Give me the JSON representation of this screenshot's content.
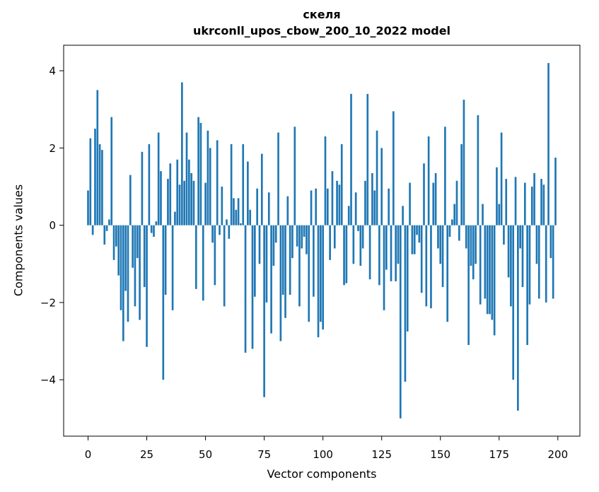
{
  "figure": {
    "background": "#ffffff",
    "text_color": "#000000"
  },
  "chart_data": {
    "type": "bar",
    "title_line1": "скеля",
    "title_line2": "ukrconll_upos_cbow_200_10_2022 model",
    "xlabel": "Vector components",
    "ylabel": "Components values",
    "bar_color": "#1f77b4",
    "legend": "none",
    "grid": false,
    "x_ticks": [
      0,
      25,
      50,
      75,
      100,
      125,
      150,
      175,
      200
    ],
    "y_ticks": [
      -4,
      -2,
      0,
      2,
      4
    ],
    "xlim": [
      -10.39,
      209.39
    ],
    "ylim": [
      -5.46,
      4.66
    ],
    "x_start": 0,
    "bar_width_units": 0.8,
    "values": [
      0.9,
      2.25,
      -0.25,
      2.5,
      3.5,
      2.1,
      1.95,
      -0.5,
      -0.15,
      0.15,
      2.8,
      -0.9,
      -0.55,
      -1.3,
      -2.2,
      -3.0,
      -1.7,
      -2.5,
      1.3,
      -1.1,
      -2.1,
      -0.85,
      -2.45,
      1.9,
      -1.6,
      -3.15,
      2.1,
      -0.2,
      -0.3,
      0.1,
      2.4,
      1.4,
      -4.0,
      -1.8,
      1.2,
      1.6,
      -2.2,
      0.35,
      1.7,
      1.05,
      3.7,
      1.15,
      2.4,
      1.7,
      1.35,
      1.15,
      -1.65,
      2.8,
      2.65,
      -1.95,
      1.1,
      2.45,
      2.0,
      -0.45,
      -1.55,
      2.2,
      -0.25,
      1.0,
      -2.1,
      0.15,
      -0.35,
      2.1,
      0.7,
      0.4,
      0.7,
      0.05,
      2.1,
      -3.3,
      1.65,
      0.4,
      -3.2,
      -1.85,
      0.95,
      -1.0,
      1.85,
      -4.45,
      -2.0,
      0.85,
      -2.8,
      -1.05,
      -0.45,
      2.4,
      -3.0,
      -1.8,
      -2.4,
      0.75,
      -1.8,
      -0.85,
      2.55,
      -0.55,
      -2.1,
      -0.6,
      -0.3,
      -0.75,
      -2.5,
      0.9,
      -1.85,
      0.95,
      -2.9,
      -2.5,
      -2.7,
      2.3,
      0.95,
      -0.9,
      1.4,
      -0.6,
      1.15,
      1.05,
      2.1,
      -1.55,
      -1.5,
      0.5,
      3.4,
      -1.0,
      0.85,
      -0.15,
      -1.05,
      -0.6,
      1.15,
      3.4,
      -1.4,
      1.35,
      0.9,
      2.45,
      -1.55,
      2.0,
      -2.2,
      -1.15,
      0.95,
      -1.45,
      2.95,
      -1.45,
      -1.0,
      -5.0,
      0.5,
      -4.05,
      -2.75,
      1.1,
      -0.75,
      -0.75,
      -0.25,
      -0.45,
      -1.75,
      1.6,
      -2.1,
      2.3,
      -2.15,
      1.1,
      1.35,
      -0.6,
      -1.0,
      -1.6,
      2.55,
      -2.5,
      -0.3,
      0.15,
      0.55,
      1.15,
      -0.4,
      2.1,
      3.25,
      -0.6,
      -3.1,
      -1.05,
      -1.4,
      -1.0,
      2.85,
      -2.05,
      0.55,
      -1.9,
      -2.3,
      -2.3,
      -2.45,
      -2.85,
      1.5,
      0.55,
      2.4,
      -0.5,
      1.2,
      -1.35,
      -2.1,
      -4.0,
      1.25,
      -4.8,
      -0.6,
      -1.6,
      1.1,
      -3.1,
      -2.05,
      1.0,
      1.35,
      -1.0,
      -1.9,
      1.2,
      1.05,
      -2.0,
      4.2,
      -0.85,
      -1.9,
      1.75
    ]
  }
}
